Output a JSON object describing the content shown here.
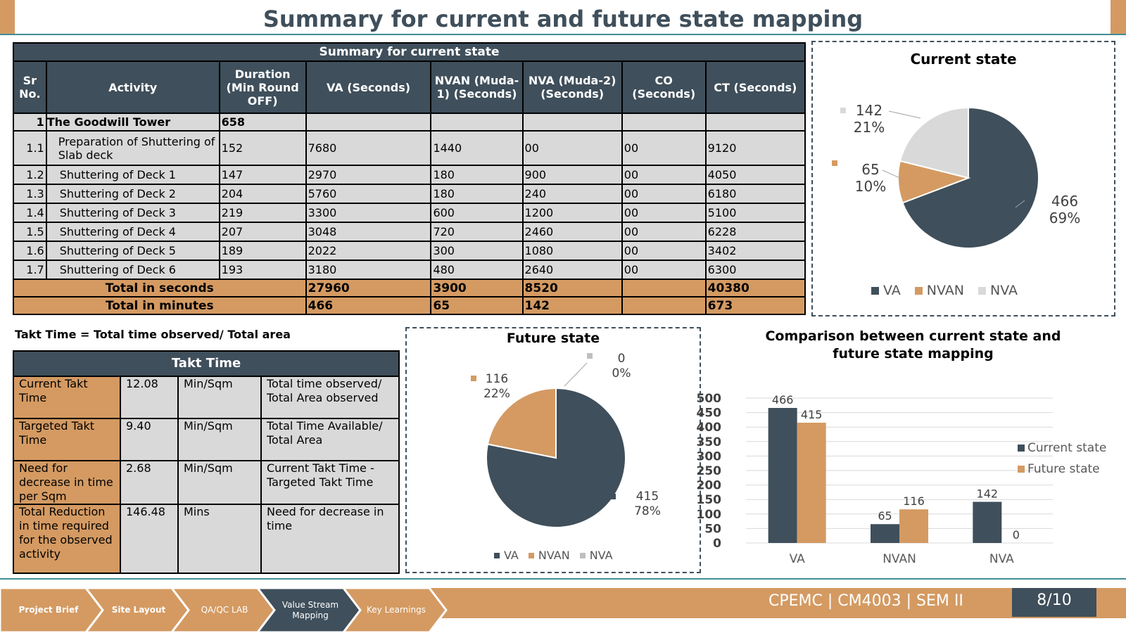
{
  "title": "Summary for current and future state mapping",
  "current_table": {
    "caption": "Summary for current state",
    "headers": [
      "Sr No.",
      "Activity",
      "Duration (Min Round OFF)",
      "VA (Seconds)",
      "NVAN (Muda-1) (Seconds)",
      "NVA (Muda-2) (Seconds)",
      "CO (Seconds)",
      "CT (Seconds)"
    ],
    "group": {
      "sr": "1",
      "activity": "The Goodwill Tower",
      "duration": "658"
    },
    "rows": [
      {
        "sr": "1.1",
        "activity": "Preparation of Shuttering of Slab deck",
        "duration": "152",
        "va": "7680",
        "nvan": "1440",
        "nva": "00",
        "co": "00",
        "ct": "9120"
      },
      {
        "sr": "1.2",
        "activity": "Shuttering of Deck 1",
        "duration": "147",
        "va": "2970",
        "nvan": "180",
        "nva": "900",
        "co": "00",
        "ct": "4050"
      },
      {
        "sr": "1.3",
        "activity": "Shuttering of Deck 2",
        "duration": "204",
        "va": "5760",
        "nvan": "180",
        "nva": "240",
        "co": "00",
        "ct": "6180"
      },
      {
        "sr": "1.4",
        "activity": "Shuttering of Deck 3",
        "duration": "219",
        "va": "3300",
        "nvan": "600",
        "nva": "1200",
        "co": "00",
        "ct": "5100"
      },
      {
        "sr": "1.5",
        "activity": "Shuttering of Deck 4",
        "duration": "207",
        "va": "3048",
        "nvan": "720",
        "nva": "2460",
        "co": "00",
        "ct": "6228"
      },
      {
        "sr": "1.6",
        "activity": "Shuttering of Deck 5",
        "duration": "189",
        "va": "2022",
        "nvan": "300",
        "nva": "1080",
        "co": "00",
        "ct": "3402"
      },
      {
        "sr": "1.7",
        "activity": "Shuttering of Deck 6",
        "duration": "193",
        "va": "3180",
        "nvan": "480",
        "nva": "2640",
        "co": "00",
        "ct": "6300"
      }
    ],
    "total_seconds": {
      "label": "Total in seconds",
      "va": "27960",
      "nvan": "3900",
      "nva": "8520",
      "co": "",
      "ct": "40380"
    },
    "total_minutes": {
      "label": "Total in minutes",
      "va": "466",
      "nvan": "65",
      "nva": "142",
      "co": "",
      "ct": "673"
    }
  },
  "takt_formula": "Takt Time = Total time observed/ Total area",
  "takt_table": {
    "caption": "Takt Time",
    "rows": [
      {
        "label": "Current Takt Time",
        "value": "12.08",
        "unit": "Min/Sqm",
        "note": "Total time observed/ Total Area observed"
      },
      {
        "label": "Targeted Takt Time",
        "value": "9.40",
        "unit": "Min/Sqm",
        "note": "Total Time Available/ Total Area"
      },
      {
        "label": "Need for decrease in time per Sqm",
        "value": "2.68",
        "unit": "Min/Sqm",
        "note": "Current Takt Time - Targeted Takt Time"
      },
      {
        "label": "Total Reduction in time required for the observed activity",
        "value": "146.48",
        "unit": "Mins",
        "note": "Need for decrease in time"
      }
    ]
  },
  "colors": {
    "dark": "#3f4f5b",
    "orange": "#d49a62",
    "grey": "#d9d9d9",
    "teal": "#3f8e96"
  },
  "chart_data": [
    {
      "type": "pie",
      "title": "Current state",
      "categories": [
        "VA",
        "NVAN",
        "NVA"
      ],
      "values": [
        466,
        65,
        142
      ],
      "labels": [
        "466",
        "65",
        "142"
      ],
      "percent_labels": [
        "69%",
        "10%",
        "21%"
      ],
      "colors": [
        "#3f4f5b",
        "#d49a62",
        "#d9d9d9"
      ],
      "legend": "bottom"
    },
    {
      "type": "pie",
      "title": "Future state",
      "categories": [
        "VA",
        "NVAN",
        "NVA"
      ],
      "values": [
        415,
        116,
        0
      ],
      "labels": [
        "415",
        "116",
        "0"
      ],
      "percent_labels": [
        "78%",
        "22%",
        "0%"
      ],
      "colors": [
        "#3f4f5b",
        "#d49a62",
        "#bfbfbf"
      ],
      "legend": "bottom"
    },
    {
      "type": "bar",
      "title": "Comparison between current state and future state mapping",
      "categories": [
        "VA",
        "NVAN",
        "NVA"
      ],
      "series": [
        {
          "name": "Current state",
          "values": [
            466,
            65,
            142
          ],
          "color": "#3f4f5b"
        },
        {
          "name": "Future state",
          "values": [
            415,
            116,
            0
          ],
          "color": "#d49a62"
        }
      ],
      "ylim": [
        0,
        500
      ],
      "yticks": [
        "0",
        "50",
        "100",
        "150",
        "200",
        "250",
        "300",
        "350",
        "400",
        "450",
        "500"
      ],
      "grid": true,
      "legend": "right"
    }
  ],
  "footer": {
    "tabs": [
      "Project Brief",
      "Site Layout",
      "QA/QC LAB",
      "Value Stream Mapping",
      "Key Learnings"
    ],
    "active_tab": "Value Stream Mapping",
    "course": "CPEMC | CM4003 | SEM II",
    "page": "8/10"
  }
}
